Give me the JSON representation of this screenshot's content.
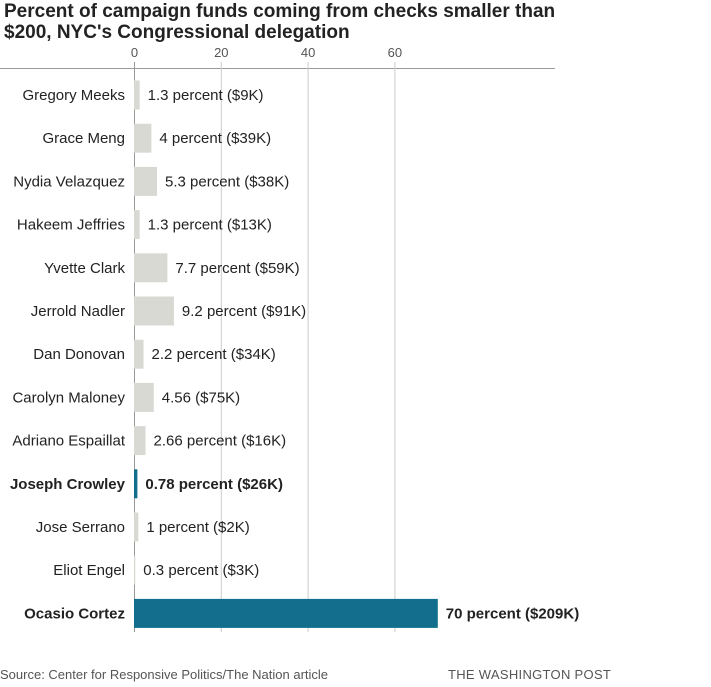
{
  "title": "Percent of campaign funds coming from checks smaller than $200, NYC's Congressional delegation",
  "source": "Source: Center for Responsive Politics/The Nation article",
  "credit": "THE WASHINGTON POST",
  "colors": {
    "default_bar": "#d9d9d4",
    "highlight_bar": "#126e8c",
    "grid": "#cccccc"
  },
  "chart_data": {
    "type": "bar",
    "orientation": "horizontal",
    "title": "Percent of campaign funds coming from checks smaller than $200, NYC's Congressional delegation",
    "xlim": [
      0,
      70
    ],
    "xticks": [
      0,
      20,
      40,
      60
    ],
    "grid": true,
    "categories": [
      "Gregory Meeks",
      "Grace Meng",
      "Nydia Velazquez",
      "Hakeem Jeffries",
      "Yvette Clark",
      "Jerrold Nadler",
      "Dan Donovan",
      "Carolyn Maloney",
      "Adriano Espaillat",
      "Joseph Crowley",
      "Jose Serrano",
      "Eliot Engel",
      "Ocasio Cortez"
    ],
    "values": [
      1.3,
      4,
      5.3,
      1.3,
      7.7,
      9.2,
      2.2,
      4.56,
      2.66,
      0.78,
      1,
      0.3,
      70
    ],
    "labels": [
      "1.3 percent ($9K)",
      "4 percent ($39K)",
      "5.3 percent ($38K)",
      "1.3 percent ($13K)",
      "7.7 percent ($59K)",
      "9.2 percent ($91K)",
      "2.2 percent ($34K)",
      "4.56 ($75K)",
      "2.66 percent ($16K)",
      "0.78 percent ($26K)",
      "1 percent ($2K)",
      "0.3 percent ($3K)",
      "70 percent ($209K)"
    ],
    "highlighted": [
      false,
      false,
      false,
      false,
      false,
      false,
      false,
      false,
      false,
      true,
      false,
      false,
      true
    ]
  }
}
